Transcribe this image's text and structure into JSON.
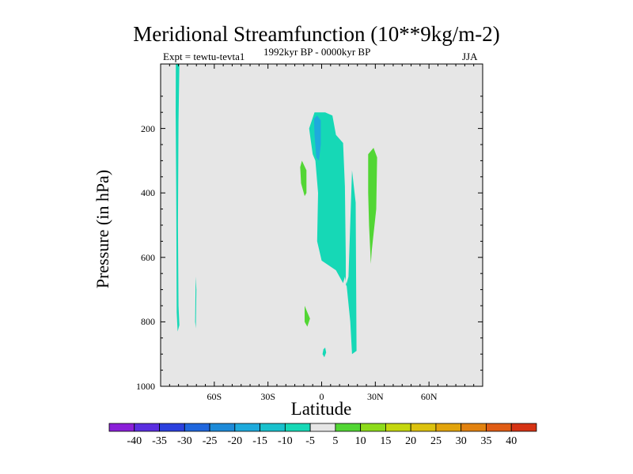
{
  "header": {
    "title": "Meridional Streamfunction (10**9kg/m-2)",
    "experiment": "Expt = tewtu-tevta1",
    "period": "1992kyr BP - 0000kyr BP",
    "season": "JJA"
  },
  "chart_data": {
    "type": "contour-fill",
    "title": "Meridional Streamfunction (10**9kg/m-2)",
    "xlabel": "Latitude",
    "ylabel": "Pressure (in hPa)",
    "x_range": [
      -90,
      90
    ],
    "y_range": [
      0,
      1000
    ],
    "y_inverted": true,
    "background_color": "#e6e6e6",
    "x_ticks": [
      {
        "value": -60,
        "label": "60S"
      },
      {
        "value": -30,
        "label": "30S"
      },
      {
        "value": 0,
        "label": "0"
      },
      {
        "value": 30,
        "label": "30N"
      },
      {
        "value": 60,
        "label": "60N"
      }
    ],
    "y_ticks": [
      {
        "value": 200,
        "label": "200"
      },
      {
        "value": 400,
        "label": "400"
      },
      {
        "value": 600,
        "label": "600"
      },
      {
        "value": 800,
        "label": "800"
      },
      {
        "value": 1000,
        "label": "1000"
      }
    ],
    "colorbar": {
      "levels": [
        "-40",
        "-35",
        "-30",
        "-25",
        "-20",
        "-15",
        "-10",
        "-5",
        "5",
        "10",
        "15",
        "20",
        "25",
        "30",
        "35",
        "40"
      ],
      "colors": [
        "#8a1fd8",
        "#5a2ee0",
        "#2b40de",
        "#1f66dd",
        "#1d8ad8",
        "#1eaadc",
        "#19c1cd",
        "#16d8b6",
        "#e6e6e6",
        "#52d634",
        "#8ddb1a",
        "#c4d70e",
        "#dcc20e",
        "#e2a40c",
        "#e2820f",
        "#e05c14",
        "#d63314"
      ]
    },
    "regions": [
      {
        "name": "Antarctic cell (negative)",
        "color": "#16d8b6",
        "points": [
          [
            -81.5,
            0
          ],
          [
            -79.5,
            0
          ],
          [
            -80,
            180
          ],
          [
            -80.3,
            500
          ],
          [
            -80,
            750
          ],
          [
            -79.5,
            810
          ],
          [
            -80.5,
            830
          ],
          [
            -81,
            770
          ],
          [
            -81.3,
            400
          ],
          [
            -81.6,
            150
          ]
        ]
      },
      {
        "name": "Southern small negative cell",
        "color": "#16d8b6",
        "points": [
          [
            -70.4,
            660
          ],
          [
            -70.7,
            800
          ],
          [
            -70.3,
            820
          ],
          [
            -70.0,
            700
          ]
        ]
      },
      {
        "name": "Main tropical cell (negative)",
        "color": "#16d8b6",
        "points": [
          [
            -7,
            200
          ],
          [
            -4,
            150
          ],
          [
            2,
            150
          ],
          [
            6,
            160
          ],
          [
            8,
            220
          ],
          [
            12,
            245
          ],
          [
            13,
            380
          ],
          [
            13.5,
            600
          ],
          [
            13.5,
            690
          ],
          [
            15,
            660
          ],
          [
            17,
            330
          ],
          [
            19,
            430
          ],
          [
            19.5,
            890
          ],
          [
            17,
            900
          ],
          [
            16,
            800
          ],
          [
            14,
            690
          ],
          [
            13,
            660
          ],
          [
            12,
            680
          ],
          [
            8,
            640
          ],
          [
            0,
            610
          ],
          [
            -2.5,
            550
          ],
          [
            -2,
            400
          ],
          [
            -3.5,
            300
          ],
          [
            -5,
            280
          ],
          [
            -6,
            240
          ]
        ]
      },
      {
        "name": "Tropical core (stronger negative)",
        "color": "#1eaadc",
        "points": [
          [
            -4.3,
            170
          ],
          [
            -2.5,
            160
          ],
          [
            -0.5,
            175
          ],
          [
            -0.5,
            250
          ],
          [
            -1.5,
            300
          ],
          [
            -3,
            290
          ],
          [
            -4,
            220
          ]
        ]
      },
      {
        "name": "Equatorial surface cell (negative)",
        "color": "#16d8b6",
        "points": [
          [
            1,
            885
          ],
          [
            2,
            880
          ],
          [
            2.5,
            895
          ],
          [
            1.5,
            910
          ],
          [
            0.5,
            900
          ]
        ]
      },
      {
        "name": "Southern positive cell",
        "color": "#52d634",
        "points": [
          [
            -12,
            320
          ],
          [
            -11,
            300
          ],
          [
            -8.5,
            330
          ],
          [
            -8.5,
            400
          ],
          [
            -9.5,
            410
          ],
          [
            -11.5,
            370
          ]
        ]
      },
      {
        "name": "Low-level positive cell",
        "color": "#52d634",
        "points": [
          [
            -9.5,
            750
          ],
          [
            -8,
            770
          ],
          [
            -6.5,
            790
          ],
          [
            -8,
            815
          ],
          [
            -9.5,
            800
          ]
        ]
      },
      {
        "name": "Northern positive cell",
        "color": "#52d634",
        "points": [
          [
            26,
            280
          ],
          [
            29,
            260
          ],
          [
            31,
            290
          ],
          [
            30.5,
            450
          ],
          [
            28,
            580
          ],
          [
            27.5,
            620
          ],
          [
            26.5,
            500
          ],
          [
            26,
            400
          ]
        ]
      }
    ]
  }
}
